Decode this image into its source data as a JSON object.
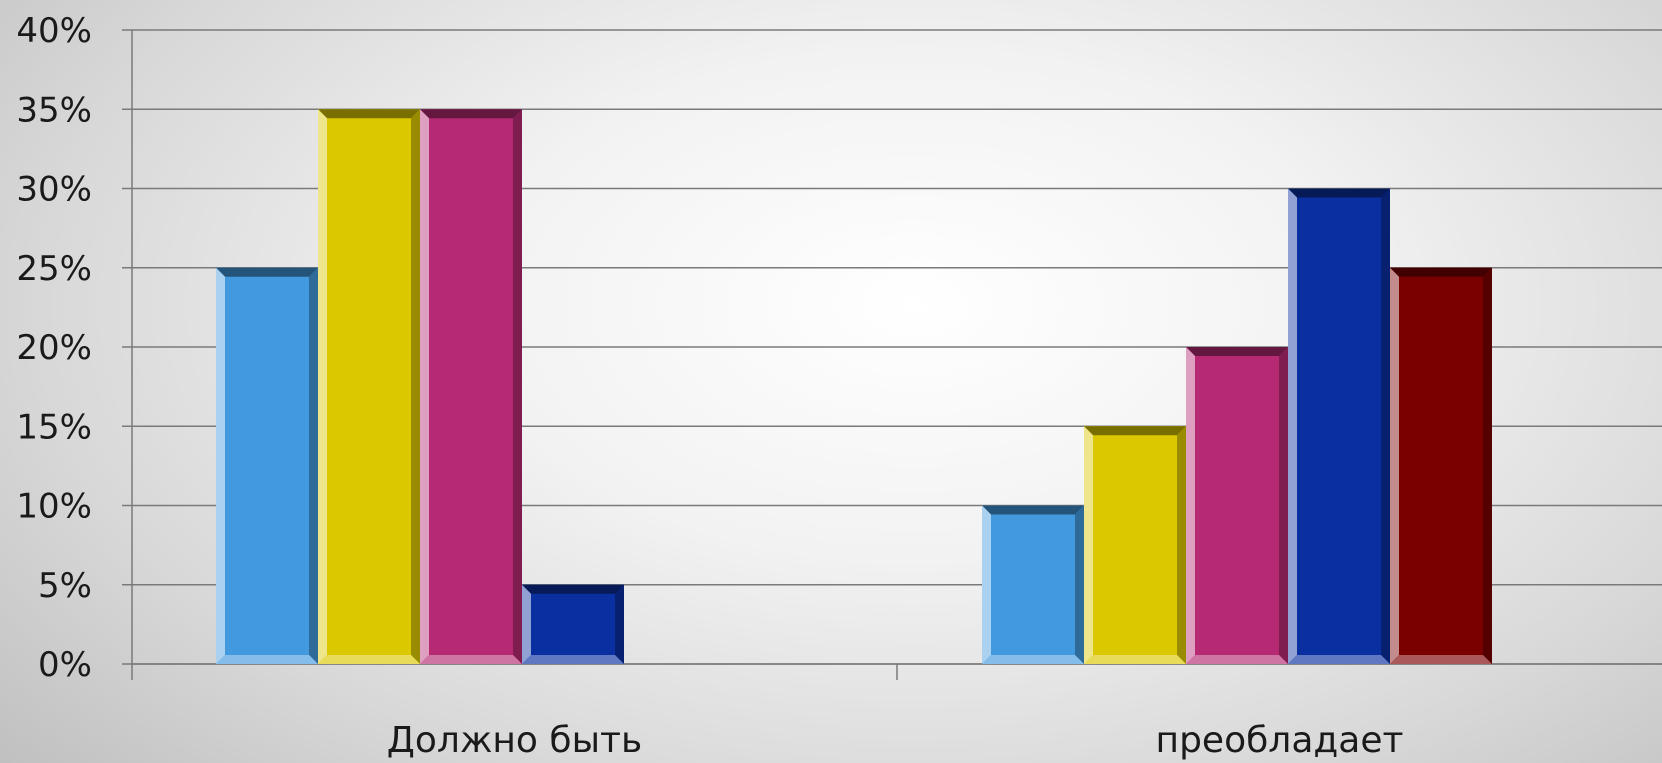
{
  "chart_data": {
    "type": "bar",
    "title": "",
    "xlabel": "",
    "ylabel": "",
    "ylim": [
      0,
      40
    ],
    "y_ticks": [
      "0%",
      "5%",
      "10%",
      "15%",
      "20%",
      "25%",
      "30%",
      "35%",
      "40%"
    ],
    "y_tick_values": [
      0,
      5,
      10,
      15,
      20,
      25,
      30,
      35,
      40
    ],
    "grid": true,
    "legend": "none",
    "categories": [
      "Должно быть",
      "преобладает"
    ],
    "series": [
      {
        "color": "#4299dd",
        "values": [
          25,
          10
        ]
      },
      {
        "color": "#dcc800",
        "values": [
          35,
          15
        ]
      },
      {
        "color": "#b52a73",
        "values": [
          35,
          20
        ]
      },
      {
        "color": "#0a2fa0",
        "values": [
          5,
          30
        ]
      },
      {
        "color": "#7a0000",
        "values": [
          0,
          25
        ]
      }
    ]
  }
}
